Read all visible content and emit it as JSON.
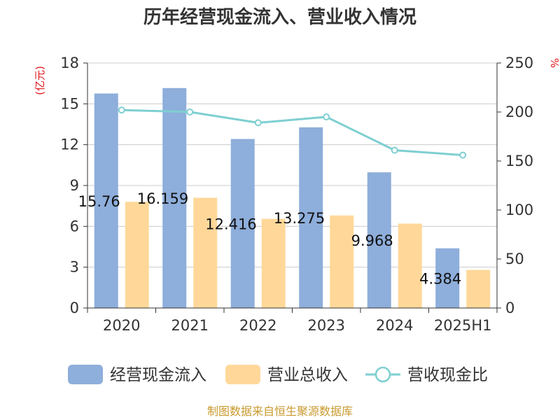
{
  "chart_data": {
    "type": "bar",
    "title": "历年经营现金流入、营业收入情况",
    "categories": [
      "2020",
      "2021",
      "2022",
      "2023",
      "2024",
      "2025H1"
    ],
    "series": [
      {
        "name": "经营现金流入",
        "type": "bar",
        "axis": "left",
        "color": "#8eaedb",
        "values": [
          15.76,
          16.159,
          12.416,
          13.275,
          9.968,
          4.384
        ]
      },
      {
        "name": "营业总收入",
        "type": "bar",
        "axis": "left",
        "color": "#ffd899",
        "values": [
          7.8,
          8.1,
          6.55,
          6.8,
          6.2,
          2.8
        ]
      },
      {
        "name": "营收现金比",
        "type": "line",
        "axis": "right",
        "color": "#7ecfd1",
        "values": [
          202,
          200,
          189,
          195,
          161,
          156
        ]
      }
    ],
    "left_axis": {
      "unit": "(亿元)",
      "ylim": [
        0,
        18
      ],
      "ticks": [
        "0",
        "3",
        "6",
        "9",
        "12",
        "15",
        "18"
      ]
    },
    "right_axis": {
      "unit": "%",
      "ylim": [
        0,
        250
      ],
      "ticks": [
        "0",
        "50",
        "100",
        "150",
        "200",
        "250"
      ]
    },
    "data_labels": [
      "15.76",
      "16.159",
      "12.416",
      "13.275",
      "9.968",
      "4.384"
    ],
    "grid": true,
    "legend_position": "bottom",
    "source_note": "制图数据来自恒生聚源数据库"
  }
}
